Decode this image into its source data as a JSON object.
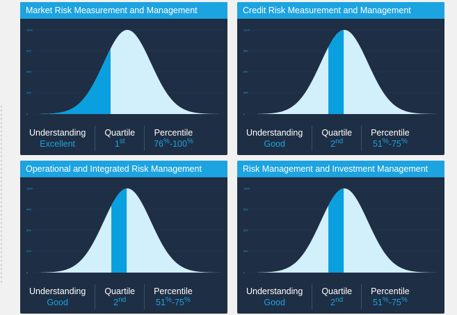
{
  "cards": [
    {
      "title": "Market Risk Measurement and Management",
      "understanding_label": "Understanding",
      "understanding_value": "Excellent",
      "quartile_label": "Quartile",
      "quartile_num": "1",
      "quartile_suffix": "st",
      "percentile_label": "Percentile",
      "percentile_low": "76",
      "percentile_low_suffix": "%",
      "percentile_sep": "-",
      "percentile_high": "100",
      "percentile_high_suffix": "%",
      "shaded_range": [
        76,
        100
      ]
    },
    {
      "title": "Credit Risk Measurement and Management",
      "understanding_label": "Understanding",
      "understanding_value": "Good",
      "quartile_label": "Quartile",
      "quartile_num": "2",
      "quartile_suffix": "nd",
      "percentile_label": "Percentile",
      "percentile_low": "51",
      "percentile_low_suffix": "%",
      "percentile_sep": "-",
      "percentile_high": "75",
      "percentile_high_suffix": "%",
      "shaded_range": [
        51,
        75
      ]
    },
    {
      "title": "Operational and Integrated Risk Management",
      "understanding_label": "Understanding",
      "understanding_value": "Good",
      "quartile_label": "Quartile",
      "quartile_num": "2",
      "quartile_suffix": "nd",
      "percentile_label": "Percentile",
      "percentile_low": "51",
      "percentile_low_suffix": "%",
      "percentile_sep": "-",
      "percentile_high": "75",
      "percentile_high_suffix": "%",
      "shaded_range": [
        51,
        75
      ]
    },
    {
      "title": "Risk Management and Investment Management",
      "understanding_label": "Understanding",
      "understanding_value": "Good",
      "quartile_label": "Quartile",
      "quartile_num": "2",
      "quartile_suffix": "nd",
      "percentile_label": "Percentile",
      "percentile_low": "51",
      "percentile_low_suffix": "%",
      "percentile_sep": "-",
      "percentile_high": "75",
      "percentile_high_suffix": "%",
      "shaded_range": [
        51,
        75
      ]
    }
  ],
  "chart_axis": {
    "y_ticks": [
      "1200",
      "900",
      "600",
      "300",
      "0"
    ],
    "ylim": [
      0,
      1200
    ]
  },
  "colors": {
    "header": "#1ca3e0",
    "panel": "#1e2e44",
    "curve_fill": "#d2f0fb",
    "highlight": "#0a9fde"
  }
}
